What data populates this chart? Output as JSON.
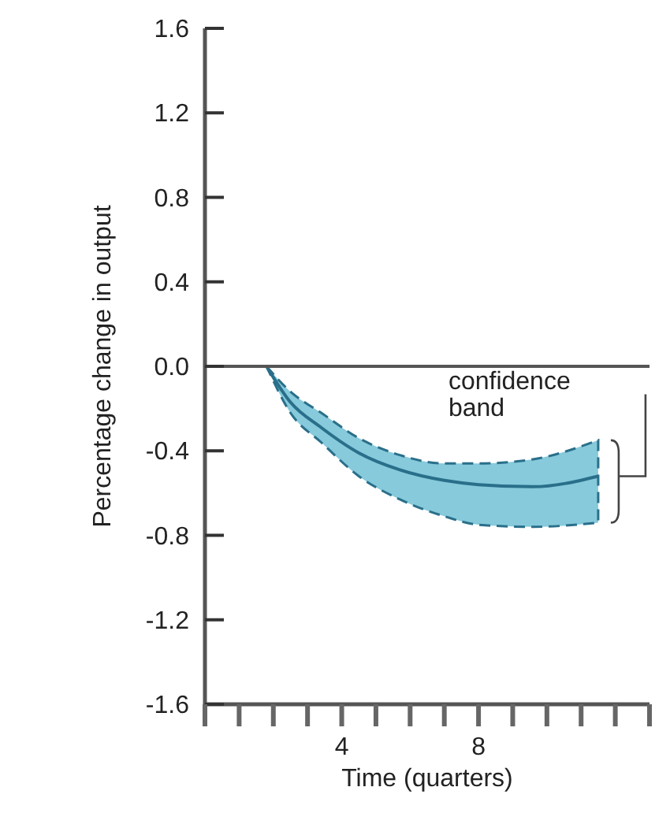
{
  "chart_data": {
    "type": "line",
    "xlabel": "Time (quarters)",
    "ylabel": "Percentage change in output",
    "xlim": [
      0,
      13
    ],
    "xticks": [
      {
        "value": 0,
        "label": null
      },
      {
        "value": 1,
        "label": null
      },
      {
        "value": 2,
        "label": null
      },
      {
        "value": 3,
        "label": null
      },
      {
        "value": 4,
        "label": "4"
      },
      {
        "value": 5,
        "label": null
      },
      {
        "value": 6,
        "label": null
      },
      {
        "value": 7,
        "label": null
      },
      {
        "value": 8,
        "label": "8"
      },
      {
        "value": 9,
        "label": null
      },
      {
        "value": 10,
        "label": null
      },
      {
        "value": 11,
        "label": null
      },
      {
        "value": 12,
        "label": null
      },
      {
        "value": 13,
        "label": null
      }
    ],
    "ylim": [
      -1.6,
      1.6
    ],
    "yticks": [
      -1.6,
      -1.2,
      -0.8,
      -0.4,
      {
        "value": 0,
        "label": "0.0"
      },
      0.4,
      0.8,
      1.2,
      1.6
    ],
    "x": [
      1.8,
      2.5,
      3.4,
      4.5,
      5.7,
      7,
      8,
      9.6,
      11.5
    ],
    "series": [
      {
        "color": "#2a6f8a",
        "values": [
          0,
          -0.17,
          -0.29,
          -0.41,
          -0.49,
          -0.54,
          -0.56,
          -0.57,
          -0.52
        ],
        "lower": [
          0,
          -0.22,
          -0.36,
          -0.52,
          -0.63,
          -0.71,
          -0.75,
          -0.76,
          -0.74
        ],
        "upper": [
          0,
          -0.12,
          -0.22,
          -0.34,
          -0.42,
          -0.46,
          -0.46,
          -0.44,
          -0.35
        ]
      }
    ],
    "ref_lines": [
      {
        "axis": "y",
        "value": 0,
        "color": "#555555"
      }
    ],
    "annotations": [
      {
        "text": "confidence band",
        "x": 11.5,
        "y": -0.52
      }
    ],
    "grid": false,
    "marker": "none",
    "line_style": "solid"
  }
}
